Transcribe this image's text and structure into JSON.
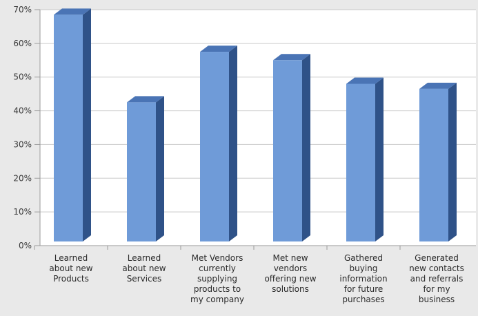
{
  "chart_data": {
    "type": "bar",
    "categories": [
      [
        "Learned",
        "about new",
        "Products"
      ],
      [
        "Learned",
        "about new",
        "Services"
      ],
      [
        "Met Vendors",
        "currently",
        "supplying",
        "products to",
        "my company"
      ],
      [
        "Met new",
        "vendors",
        "offering new",
        "solutions"
      ],
      [
        "Gathered",
        "buying",
        "information",
        "for future",
        "purchases"
      ],
      [
        "Generated",
        "new contacts",
        "and referrals",
        "for my",
        "business"
      ]
    ],
    "values": [
      68.5,
      42.5,
      57.5,
      55,
      48,
      46.5
    ],
    "y_ticks": [
      "0%",
      "10%",
      "20%",
      "30%",
      "40%",
      "50%",
      "60%",
      "70%"
    ],
    "ylim": [
      0,
      70
    ],
    "grid": true,
    "legend": "none",
    "colors": {
      "bar_front": "#6f9bd8",
      "bar_side": "#2f5288",
      "bar_top": "#4a74b5",
      "plot_bg": "#ffffff",
      "grid": "#c8c8c8"
    }
  }
}
